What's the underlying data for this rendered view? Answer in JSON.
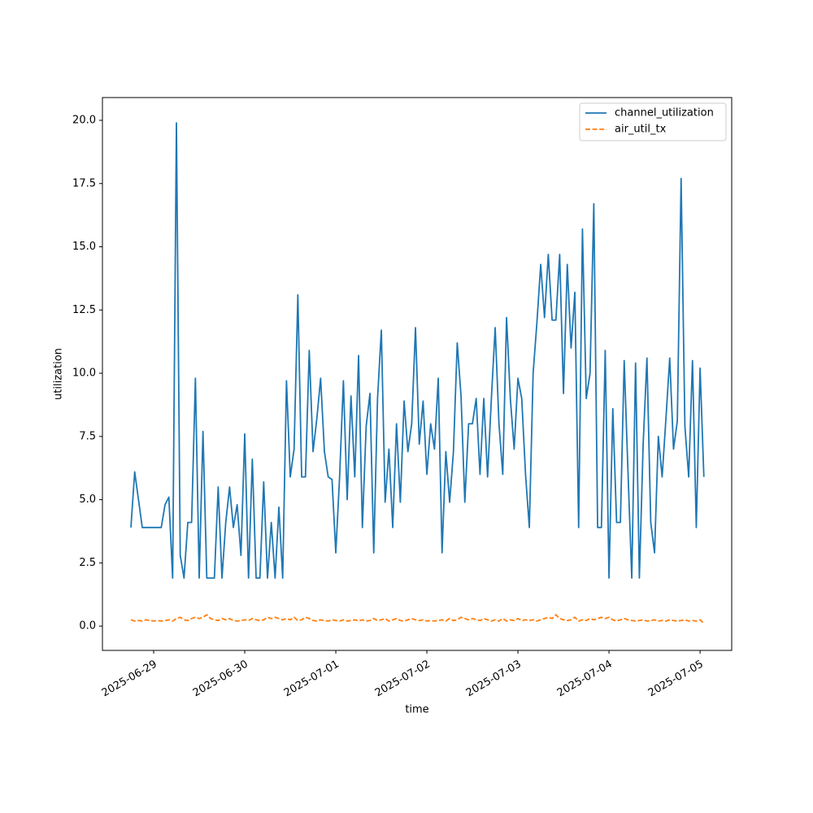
{
  "chart_data": {
    "type": "line",
    "xlabel": "time",
    "ylabel": "utilization",
    "x": [
      "2025-06-28 18:00",
      "2025-06-28 19:00",
      "2025-06-28 20:00",
      "2025-06-28 21:00",
      "2025-06-28 22:00",
      "2025-06-28 23:00",
      "2025-06-29 00:00",
      "2025-06-29 01:00",
      "2025-06-29 02:00",
      "2025-06-29 03:00",
      "2025-06-29 04:00",
      "2025-06-29 05:00",
      "2025-06-29 06:00",
      "2025-06-29 07:00",
      "2025-06-29 08:00",
      "2025-06-29 09:00",
      "2025-06-29 10:00",
      "2025-06-29 11:00",
      "2025-06-29 12:00",
      "2025-06-29 13:00",
      "2025-06-29 14:00",
      "2025-06-29 15:00",
      "2025-06-29 16:00",
      "2025-06-29 17:00",
      "2025-06-29 18:00",
      "2025-06-29 19:00",
      "2025-06-29 20:00",
      "2025-06-29 21:00",
      "2025-06-29 22:00",
      "2025-06-29 23:00",
      "2025-06-30 00:00",
      "2025-06-30 01:00",
      "2025-06-30 02:00",
      "2025-06-30 03:00",
      "2025-06-30 04:00",
      "2025-06-30 05:00",
      "2025-06-30 06:00",
      "2025-06-30 07:00",
      "2025-06-30 08:00",
      "2025-06-30 09:00",
      "2025-06-30 10:00",
      "2025-06-30 11:00",
      "2025-06-30 12:00",
      "2025-06-30 13:00",
      "2025-06-30 14:00",
      "2025-06-30 15:00",
      "2025-06-30 16:00",
      "2025-06-30 17:00",
      "2025-06-30 18:00",
      "2025-06-30 19:00",
      "2025-06-30 20:00",
      "2025-06-30 21:00",
      "2025-06-30 22:00",
      "2025-06-30 23:00",
      "2025-07-01 00:00",
      "2025-07-01 01:00",
      "2025-07-01 02:00",
      "2025-07-01 03:00",
      "2025-07-01 04:00",
      "2025-07-01 05:00",
      "2025-07-01 06:00",
      "2025-07-01 07:00",
      "2025-07-01 08:00",
      "2025-07-01 09:00",
      "2025-07-01 10:00",
      "2025-07-01 11:00",
      "2025-07-01 12:00",
      "2025-07-01 13:00",
      "2025-07-01 14:00",
      "2025-07-01 15:00",
      "2025-07-01 16:00",
      "2025-07-01 17:00",
      "2025-07-01 18:00",
      "2025-07-01 19:00",
      "2025-07-01 20:00",
      "2025-07-01 21:00",
      "2025-07-01 22:00",
      "2025-07-01 23:00",
      "2025-07-02 00:00",
      "2025-07-02 01:00",
      "2025-07-02 02:00",
      "2025-07-02 03:00",
      "2025-07-02 04:00",
      "2025-07-02 05:00",
      "2025-07-02 06:00",
      "2025-07-02 07:00",
      "2025-07-02 08:00",
      "2025-07-02 09:00",
      "2025-07-02 10:00",
      "2025-07-02 11:00",
      "2025-07-02 12:00",
      "2025-07-02 13:00",
      "2025-07-02 14:00",
      "2025-07-02 15:00",
      "2025-07-02 16:00",
      "2025-07-02 17:00",
      "2025-07-02 18:00",
      "2025-07-02 19:00",
      "2025-07-02 20:00",
      "2025-07-02 21:00",
      "2025-07-02 22:00",
      "2025-07-02 23:00",
      "2025-07-03 00:00",
      "2025-07-03 01:00",
      "2025-07-03 02:00",
      "2025-07-03 03:00",
      "2025-07-03 04:00",
      "2025-07-03 05:00",
      "2025-07-03 06:00",
      "2025-07-03 07:00",
      "2025-07-03 08:00",
      "2025-07-03 09:00",
      "2025-07-03 10:00",
      "2025-07-03 11:00",
      "2025-07-03 12:00",
      "2025-07-03 13:00",
      "2025-07-03 14:00",
      "2025-07-03 15:00",
      "2025-07-03 16:00",
      "2025-07-03 17:00",
      "2025-07-03 18:00",
      "2025-07-03 19:00",
      "2025-07-03 20:00",
      "2025-07-03 21:00",
      "2025-07-03 22:00",
      "2025-07-03 23:00",
      "2025-07-04 00:00",
      "2025-07-04 01:00",
      "2025-07-04 02:00",
      "2025-07-04 03:00",
      "2025-07-04 04:00",
      "2025-07-04 05:00",
      "2025-07-04 06:00",
      "2025-07-04 07:00",
      "2025-07-04 08:00",
      "2025-07-04 09:00",
      "2025-07-04 10:00",
      "2025-07-04 11:00",
      "2025-07-04 12:00",
      "2025-07-04 13:00",
      "2025-07-04 14:00",
      "2025-07-04 15:00",
      "2025-07-04 16:00",
      "2025-07-04 17:00",
      "2025-07-04 18:00",
      "2025-07-04 19:00",
      "2025-07-04 20:00",
      "2025-07-04 21:00",
      "2025-07-04 22:00",
      "2025-07-04 23:00",
      "2025-07-05 00:00",
      "2025-07-05 01:00"
    ],
    "series": [
      {
        "name": "channel_utilization",
        "color": "#1f77b4",
        "dash": "solid",
        "values": [
          3.9,
          6.1,
          5.0,
          3.9,
          3.9,
          3.9,
          3.9,
          3.9,
          3.9,
          4.8,
          5.1,
          1.9,
          19.9,
          2.8,
          1.9,
          4.1,
          4.1,
          9.8,
          1.9,
          7.7,
          1.9,
          1.9,
          1.9,
          5.5,
          1.9,
          4.1,
          5.5,
          3.9,
          4.8,
          2.8,
          7.6,
          1.9,
          6.6,
          1.9,
          1.9,
          5.7,
          1.9,
          4.1,
          1.9,
          4.7,
          1.9,
          9.7,
          5.9,
          7.0,
          13.1,
          5.9,
          5.9,
          10.9,
          6.9,
          8.2,
          9.8,
          6.9,
          5.9,
          5.8,
          2.9,
          5.9,
          9.7,
          5.0,
          9.1,
          5.9,
          10.7,
          3.9,
          7.9,
          9.2,
          2.9,
          9.0,
          11.7,
          4.9,
          7.0,
          3.9,
          8.0,
          4.9,
          8.9,
          6.9,
          8.0,
          11.8,
          7.2,
          8.9,
          6.0,
          8.0,
          7.0,
          9.8,
          2.9,
          6.9,
          4.9,
          6.9,
          11.2,
          9.1,
          4.9,
          8.0,
          8.0,
          9.0,
          6.0,
          9.0,
          5.9,
          9.0,
          11.8,
          8.0,
          6.0,
          12.2,
          9.0,
          7.0,
          9.8,
          9.0,
          6.0,
          3.9,
          10.0,
          12.0,
          14.3,
          12.2,
          14.7,
          12.1,
          12.1,
          14.7,
          9.2,
          14.3,
          11.0,
          13.2,
          3.9,
          15.7,
          9.0,
          10.0,
          16.7,
          3.9,
          3.9,
          10.9,
          1.9,
          8.6,
          4.1,
          4.1,
          10.5,
          6.1,
          1.9,
          10.4,
          1.9,
          7.2,
          10.6,
          4.1,
          2.9,
          7.5,
          5.9,
          8.2,
          10.6,
          7.0,
          8.1,
          17.7,
          7.9,
          5.9,
          10.5,
          3.9,
          10.2,
          5.9
        ]
      },
      {
        "name": "air_util_tx",
        "color": "#ff7f0e",
        "dash": "dashed",
        "values": [
          0.25,
          0.2,
          0.22,
          0.2,
          0.25,
          0.22,
          0.2,
          0.22,
          0.2,
          0.22,
          0.25,
          0.2,
          0.3,
          0.35,
          0.25,
          0.22,
          0.3,
          0.35,
          0.3,
          0.35,
          0.45,
          0.3,
          0.25,
          0.22,
          0.3,
          0.25,
          0.3,
          0.22,
          0.2,
          0.22,
          0.25,
          0.22,
          0.3,
          0.25,
          0.22,
          0.25,
          0.35,
          0.3,
          0.35,
          0.3,
          0.25,
          0.3,
          0.25,
          0.35,
          0.22,
          0.25,
          0.35,
          0.3,
          0.22,
          0.2,
          0.25,
          0.22,
          0.2,
          0.25,
          0.22,
          0.2,
          0.25,
          0.2,
          0.22,
          0.25,
          0.2,
          0.25,
          0.2,
          0.22,
          0.3,
          0.22,
          0.25,
          0.3,
          0.2,
          0.25,
          0.3,
          0.22,
          0.2,
          0.25,
          0.3,
          0.25,
          0.22,
          0.25,
          0.2,
          0.22,
          0.2,
          0.22,
          0.25,
          0.2,
          0.3,
          0.22,
          0.25,
          0.35,
          0.3,
          0.25,
          0.3,
          0.25,
          0.22,
          0.3,
          0.25,
          0.2,
          0.25,
          0.2,
          0.3,
          0.2,
          0.25,
          0.22,
          0.3,
          0.22,
          0.25,
          0.22,
          0.25,
          0.2,
          0.25,
          0.3,
          0.35,
          0.3,
          0.45,
          0.3,
          0.25,
          0.22,
          0.25,
          0.35,
          0.2,
          0.25,
          0.22,
          0.3,
          0.25,
          0.3,
          0.35,
          0.3,
          0.35,
          0.25,
          0.2,
          0.25,
          0.3,
          0.25,
          0.22,
          0.2,
          0.22,
          0.25,
          0.2,
          0.22,
          0.25,
          0.2,
          0.22,
          0.2,
          0.25,
          0.22,
          0.2,
          0.22,
          0.25,
          0.2,
          0.22,
          0.2,
          0.25,
          0.1
        ]
      }
    ],
    "xlim": [
      "2025-06-28 10:30",
      "2025-07-05 08:20"
    ],
    "xticks": [
      "2025-06-29",
      "2025-06-30",
      "2025-07-01",
      "2025-07-02",
      "2025-07-03",
      "2025-07-04",
      "2025-07-05"
    ],
    "ylim": [
      -0.96,
      20.9
    ],
    "yticks": [
      {
        "value": 0,
        "label": "0.0"
      },
      {
        "value": 2.5,
        "label": "2.5"
      },
      {
        "value": 5,
        "label": "5.0"
      },
      {
        "value": 7.5,
        "label": "7.5"
      },
      {
        "value": 10,
        "label": "10.0"
      },
      {
        "value": 12.5,
        "label": "12.5"
      },
      {
        "value": 15,
        "label": "15.0"
      },
      {
        "value": 17.5,
        "label": "17.5"
      },
      {
        "value": 20,
        "label": "20.0"
      }
    ],
    "grid": false,
    "legend": "upper right"
  }
}
